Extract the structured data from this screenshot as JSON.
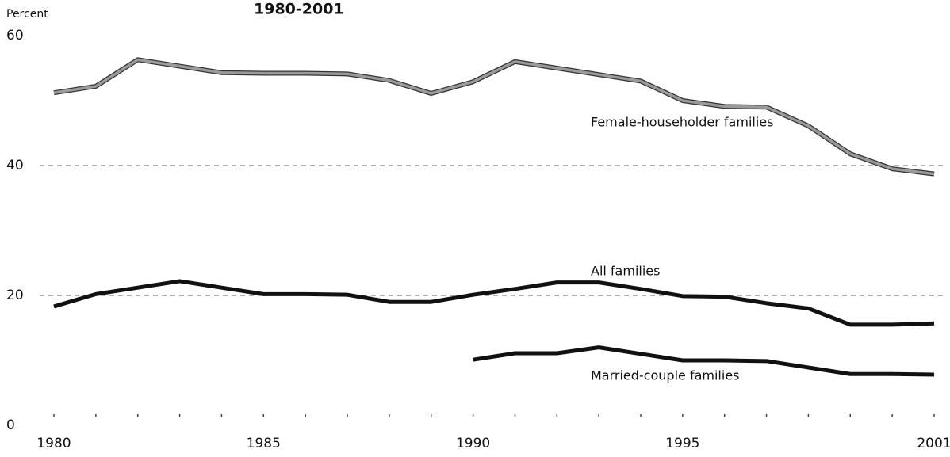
{
  "chart_data": {
    "type": "line",
    "title": "1980-2001",
    "ylabel": "Percent",
    "x": [
      1980,
      1981,
      1982,
      1983,
      1984,
      1985,
      1986,
      1987,
      1988,
      1989,
      1990,
      1991,
      1992,
      1993,
      1994,
      1995,
      1996,
      1997,
      1998,
      1999,
      2000,
      2001
    ],
    "xlim": [
      1980,
      2001
    ],
    "xticks": [
      1980,
      1985,
      1990,
      1995,
      2001
    ],
    "ylim": [
      0,
      60
    ],
    "yticks": [
      0,
      20,
      40,
      60
    ],
    "grid": true,
    "series": [
      {
        "name": "Female-householder families",
        "color": "#9a9a9a",
        "values": [
          51.2,
          52.2,
          56.3,
          55.3,
          54.3,
          54.2,
          54.2,
          54.1,
          53.1,
          51.1,
          52.9,
          56,
          55,
          54,
          53,
          50,
          49.1,
          49,
          46.1,
          41.8,
          39.5,
          38.7
        ]
      },
      {
        "name": "All families",
        "color": "#111111",
        "values": [
          18.3,
          20.2,
          21.2,
          22.2,
          21.2,
          20.2,
          20.2,
          20.1,
          19,
          19,
          20.1,
          21,
          22,
          22,
          21,
          19.9,
          19.8,
          18.8,
          18,
          15.5,
          15.5,
          15.7
        ]
      },
      {
        "name": "Married-couple families",
        "color": "#111111",
        "values": [
          null,
          null,
          null,
          null,
          null,
          null,
          null,
          null,
          null,
          null,
          10.1,
          11.1,
          11.1,
          12,
          11,
          10,
          10,
          9.9,
          8.9,
          7.9,
          7.9,
          7.8
        ]
      }
    ]
  }
}
